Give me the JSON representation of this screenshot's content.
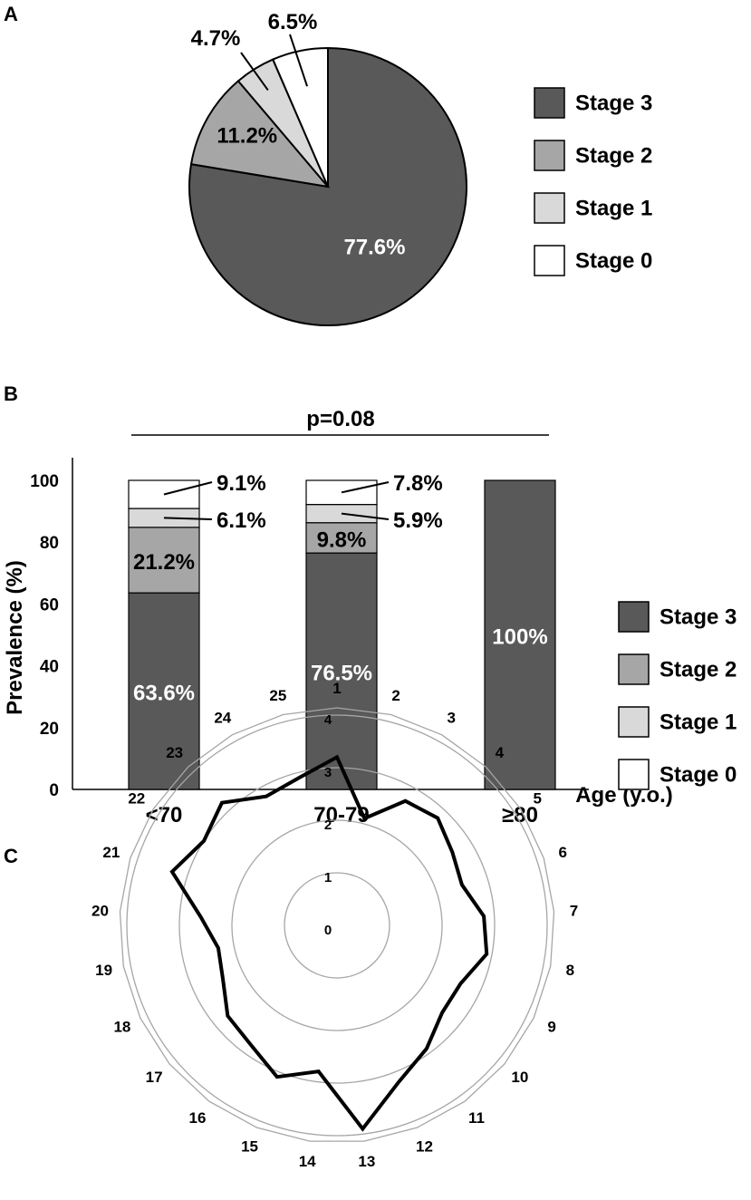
{
  "colors": {
    "stage3": "#595959",
    "stage2": "#a6a6a6",
    "stage1": "#d9d9d9",
    "stage0": "#ffffff",
    "outline": "#000000",
    "radar_grid": "#a6a6a6"
  },
  "panels": {
    "a": "A",
    "b": "B",
    "c": "C"
  },
  "legend": [
    "Stage 3",
    "Stage 2",
    "Stage 1",
    "Stage 0"
  ],
  "chart_data": [
    {
      "type": "pie",
      "panel": "A",
      "slices": [
        {
          "name": "Stage 3",
          "value": 77.6,
          "label": "77.6%"
        },
        {
          "name": "Stage 2",
          "value": 11.2,
          "label": "11.2%"
        },
        {
          "name": "Stage 1",
          "value": 4.7,
          "label": "4.7%"
        },
        {
          "name": "Stage 0",
          "value": 6.5,
          "label": "6.5%"
        }
      ],
      "legend_position": "right"
    },
    {
      "type": "bar",
      "stacked": true,
      "panel": "B",
      "categories": [
        "<70",
        "70-79",
        "≥80"
      ],
      "series": [
        {
          "name": "Stage 3",
          "values": [
            63.6,
            76.5,
            100
          ],
          "labels": [
            "63.6%",
            "76.5%",
            "100%"
          ]
        },
        {
          "name": "Stage 2",
          "values": [
            21.2,
            9.8,
            0
          ],
          "labels": [
            "21.2%",
            "9.8%",
            ""
          ]
        },
        {
          "name": "Stage 1",
          "values": [
            6.1,
            5.9,
            0
          ],
          "labels": [
            "6.1%",
            "5.9%",
            ""
          ]
        },
        {
          "name": "Stage 0",
          "values": [
            9.1,
            7.8,
            0
          ],
          "labels": [
            "9.1%",
            "7.8%",
            ""
          ]
        }
      ],
      "ylabel": "Prevalence (%)",
      "xlabel": "Age (y.o.)",
      "ylim": [
        0,
        100
      ],
      "yticks": [
        0,
        20,
        40,
        60,
        80,
        100
      ],
      "annotation": "p=0.08",
      "legend_position": "right"
    },
    {
      "type": "radar",
      "panel": "C",
      "axes": [
        "1",
        "2",
        "3",
        "4",
        "5",
        "6",
        "7",
        "8",
        "9",
        "10",
        "11",
        "12",
        "13",
        "14",
        "15",
        "16",
        "17",
        "18",
        "19",
        "20",
        "21",
        "22",
        "23",
        "24",
        "25"
      ],
      "rlim": [
        0,
        4
      ],
      "rticks": [
        "0",
        "1",
        "2",
        "3",
        "4"
      ],
      "values": [
        3.2,
        2.1,
        2.7,
        2.8,
        2.6,
        2.5,
        2.8,
        2.9,
        2.6,
        2.6,
        2.9,
        3.2,
        3.9,
        2.8,
        3.1,
        2.8,
        2.7,
        2.4,
        2.3,
        2.6,
        3.3,
        3.0,
        3.2,
        2.8,
        2.9
      ]
    }
  ]
}
